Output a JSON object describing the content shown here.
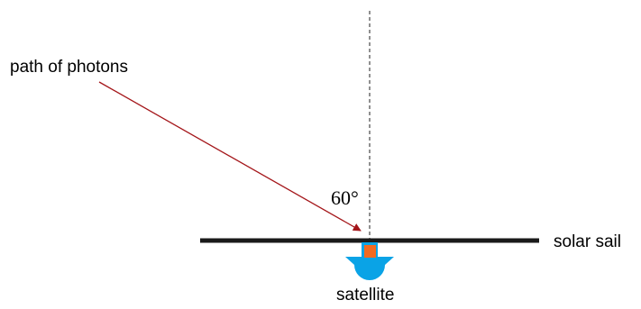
{
  "labels": {
    "photons": "path of photons",
    "angle": "60°",
    "sail": "solar sail",
    "satellite": "satellite"
  },
  "angle_deg": 60,
  "colors": {
    "photon_path": "#a4161a",
    "normal_line": "#555555",
    "sail": "#1a1a1a",
    "satellite_body": "#0aa3e6",
    "satellite_core": "#f26a21"
  }
}
